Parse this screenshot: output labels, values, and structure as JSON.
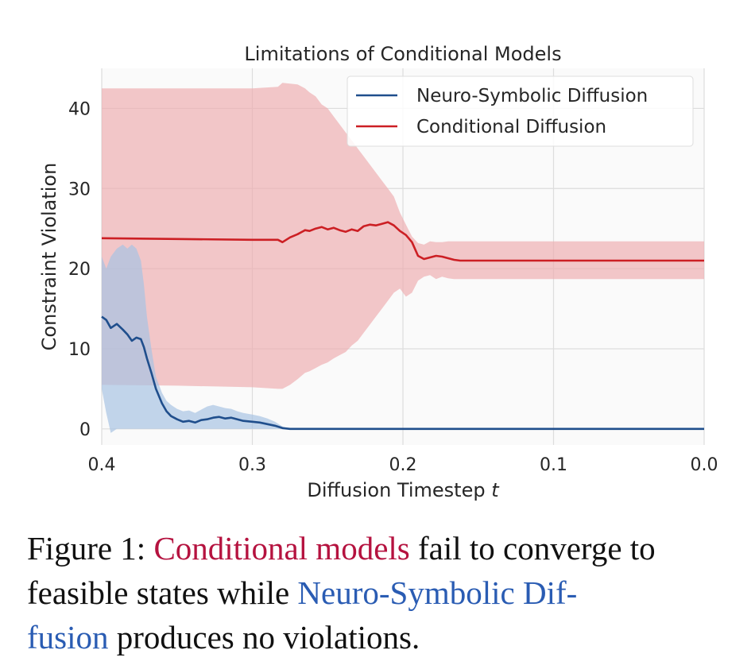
{
  "chart_data": {
    "type": "line",
    "title": "Limitations of Conditional Models",
    "xlabel": "Diffusion Timestep",
    "xlabel_var": "t",
    "ylabel": "Constraint Violation",
    "xlim": [
      0.4,
      0.0
    ],
    "ylim": [
      -2,
      45
    ],
    "x_ticks": [
      0.4,
      0.3,
      0.2,
      0.1,
      0.0
    ],
    "x_tick_labels": [
      "0.4",
      "0.3",
      "0.2",
      "0.1",
      "0.0"
    ],
    "y_ticks": [
      0,
      10,
      20,
      30,
      40
    ],
    "y_tick_labels": [
      "0",
      "10",
      "20",
      "30",
      "40"
    ],
    "grid": true,
    "legend_position": "top-right",
    "colors": {
      "neuro": "#1f4e8c",
      "neuro_band": "#a8c3e3",
      "conditional": "#cc1f24",
      "conditional_band": "#eeaaad",
      "plot_bg": "#fafafa",
      "grid": "#dddddd"
    },
    "series": [
      {
        "name": "Neuro-Symbolic Diffusion",
        "x": [
          0.4,
          0.397,
          0.394,
          0.39,
          0.386,
          0.383,
          0.38,
          0.377,
          0.374,
          0.372,
          0.37,
          0.367,
          0.364,
          0.36,
          0.357,
          0.354,
          0.35,
          0.346,
          0.342,
          0.338,
          0.334,
          0.33,
          0.326,
          0.322,
          0.318,
          0.314,
          0.31,
          0.306,
          0.3,
          0.295,
          0.29,
          0.285,
          0.28,
          0.275,
          0.2,
          0.1,
          0.0
        ],
        "values": [
          14.0,
          13.6,
          12.6,
          13.1,
          12.4,
          11.8,
          11.0,
          11.4,
          11.2,
          10.2,
          8.8,
          7.0,
          5.0,
          3.2,
          2.2,
          1.6,
          1.2,
          0.9,
          1.0,
          0.8,
          1.1,
          1.2,
          1.4,
          1.5,
          1.3,
          1.4,
          1.2,
          1.0,
          0.9,
          0.8,
          0.6,
          0.4,
          0.1,
          0.0,
          0.0,
          0.0,
          0.0
        ],
        "lower": [
          5.0,
          2.0,
          -0.5,
          0.0,
          0.0,
          0.0,
          0.0,
          0.0,
          0.0,
          0.0,
          0.0,
          0.0,
          0.0,
          0.0,
          0.0,
          0.0,
          0.0,
          0.0,
          0.0,
          0.0,
          0.0,
          0.0,
          0.0,
          0.0,
          0.0,
          0.0,
          0.0,
          0.0,
          0.0,
          0.0,
          0.0,
          0.0,
          0.0,
          0.0,
          0.0,
          0.0,
          0.0
        ],
        "upper": [
          21.5,
          20.0,
          21.5,
          22.5,
          23.0,
          22.5,
          23.0,
          22.5,
          21.0,
          18.0,
          14.0,
          10.0,
          6.5,
          4.5,
          3.5,
          3.0,
          2.5,
          2.2,
          2.3,
          2.0,
          2.4,
          2.8,
          3.0,
          2.8,
          2.6,
          2.5,
          2.2,
          2.0,
          1.8,
          1.6,
          1.3,
          0.9,
          0.3,
          0.0,
          0.0,
          0.0,
          0.0
        ]
      },
      {
        "name": "Conditional Diffusion",
        "x": [
          0.4,
          0.35,
          0.3,
          0.283,
          0.28,
          0.275,
          0.27,
          0.265,
          0.262,
          0.258,
          0.254,
          0.25,
          0.246,
          0.242,
          0.238,
          0.234,
          0.23,
          0.226,
          0.222,
          0.218,
          0.214,
          0.21,
          0.206,
          0.202,
          0.198,
          0.194,
          0.19,
          0.186,
          0.182,
          0.178,
          0.174,
          0.17,
          0.166,
          0.162,
          0.16,
          0.1,
          0.0
        ],
        "values": [
          23.8,
          23.7,
          23.6,
          23.6,
          23.3,
          23.9,
          24.3,
          24.8,
          24.7,
          25.0,
          25.2,
          24.9,
          25.1,
          24.8,
          24.6,
          24.9,
          24.7,
          25.3,
          25.5,
          25.4,
          25.6,
          25.8,
          25.4,
          24.7,
          24.2,
          23.3,
          21.6,
          21.2,
          21.4,
          21.6,
          21.5,
          21.3,
          21.1,
          21.0,
          21.0,
          21.0,
          21.0
        ],
        "lower": [
          5.5,
          5.4,
          5.2,
          5.0,
          5.0,
          5.5,
          6.2,
          7.0,
          7.2,
          7.6,
          8.0,
          8.3,
          8.8,
          9.2,
          9.6,
          10.4,
          11.0,
          12.0,
          13.0,
          14.0,
          15.0,
          16.0,
          17.0,
          17.5,
          16.5,
          17.0,
          18.5,
          19.0,
          19.2,
          18.7,
          19.0,
          18.8,
          18.7,
          18.7,
          18.7,
          18.7,
          18.7
        ],
        "upper": [
          42.5,
          42.5,
          42.5,
          42.7,
          43.2,
          43.1,
          43.0,
          42.5,
          42.0,
          41.5,
          40.5,
          40.0,
          39.0,
          38.0,
          37.0,
          36.0,
          35.0,
          34.0,
          33.0,
          32.0,
          31.0,
          30.0,
          29.0,
          27.0,
          25.5,
          24.0,
          23.2,
          23.0,
          23.4,
          23.3,
          23.3,
          23.4,
          23.4,
          23.4,
          23.4,
          23.4,
          23.4
        ]
      }
    ]
  },
  "caption": {
    "prefix": "Figure 1: ",
    "highlight_red": "Conditional models",
    "middle": " fail to converge to feasible states while ",
    "highlight_blue_part1": "Neuro-Symbolic Dif-",
    "highlight_blue_part2": "fusion",
    "suffix": " produces no violations."
  }
}
